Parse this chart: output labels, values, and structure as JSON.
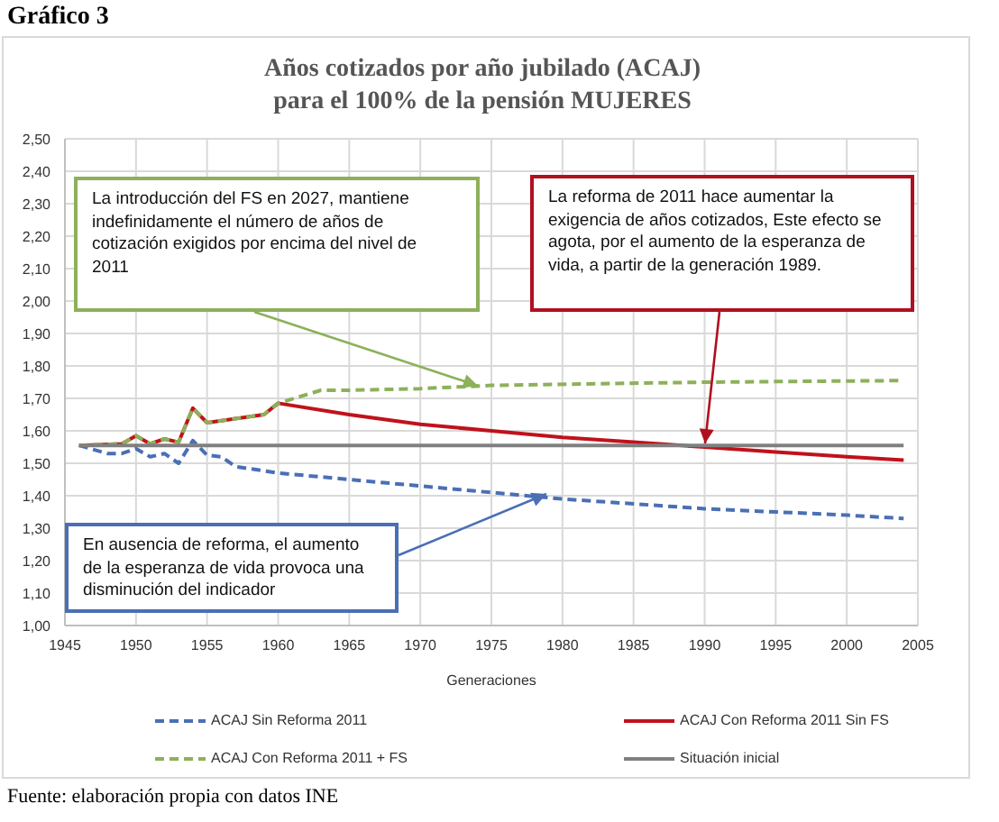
{
  "chart_data": {
    "type": "line",
    "title": "Años cotizados por año jubilado (ACAJ)",
    "subtitle": "para el 100% de la pensión MUJERES",
    "xlabel": "Generaciones",
    "xlim": [
      1945,
      2005
    ],
    "xticks": [
      1945,
      1950,
      1955,
      1960,
      1965,
      1970,
      1975,
      1980,
      1985,
      1990,
      1995,
      2000,
      2005
    ],
    "ylim": [
      1,
      2.5
    ],
    "yticks": [
      {
        "value": 1,
        "label": "1,00"
      },
      {
        "value": 1.1,
        "label": "1,10"
      },
      {
        "value": 1.2,
        "label": "1,20"
      },
      {
        "value": 1.3,
        "label": "1,30"
      },
      {
        "value": 1.4,
        "label": "1,40"
      },
      {
        "value": 1.5,
        "label": "1,50"
      },
      {
        "value": 1.6,
        "label": "1,60"
      },
      {
        "value": 1.7,
        "label": "1,70"
      },
      {
        "value": 1.8,
        "label": "1,80"
      },
      {
        "value": 1.9,
        "label": "1,90"
      },
      {
        "value": 2,
        "label": "2,00"
      },
      {
        "value": 2.1,
        "label": "2,10"
      },
      {
        "value": 2.2,
        "label": "2,20"
      },
      {
        "value": 2.3,
        "label": "2,30"
      },
      {
        "value": 2.4,
        "label": "2,40"
      },
      {
        "value": 2.5,
        "label": "2,50"
      }
    ],
    "grid": true,
    "legend": "bottom",
    "marker": "none",
    "series": [
      {
        "name": "ACAJ Sin Reforma 2011",
        "color": "#4a6fb5",
        "line_style": "dashed",
        "x": [
          1946,
          1948,
          1949,
          1950,
          1951,
          1952,
          1953,
          1954,
          1955,
          1956,
          1957,
          1960,
          1965,
          1970,
          1975,
          1980,
          1990,
          2000,
          2004
        ],
        "values": [
          1.555,
          1.53,
          1.53,
          1.545,
          1.52,
          1.53,
          1.5,
          1.57,
          1.525,
          1.52,
          1.49,
          1.47,
          1.45,
          1.43,
          1.41,
          1.39,
          1.36,
          1.34,
          1.33
        ]
      },
      {
        "name": "ACAJ Con Reforma 2011 Sin FS",
        "color": "#c0121c",
        "line_style": "solid",
        "x": [
          1946,
          1949,
          1950,
          1951,
          1952,
          1953,
          1954,
          1955,
          1959,
          1960,
          1965,
          1970,
          1975,
          1980,
          1985,
          1990,
          1995,
          2000,
          2004
        ],
        "values": [
          1.555,
          1.56,
          1.585,
          1.56,
          1.575,
          1.565,
          1.67,
          1.625,
          1.65,
          1.685,
          1.65,
          1.62,
          1.6,
          1.58,
          1.565,
          1.55,
          1.535,
          1.52,
          1.51
        ]
      },
      {
        "name": "ACAJ Con Reforma 2011 + FS",
        "color": "#8db05a",
        "line_style": "dashed",
        "x": [
          1946,
          1949,
          1950,
          1951,
          1952,
          1953,
          1954,
          1955,
          1959,
          1960,
          1963,
          1965,
          1970,
          1975,
          1990,
          2004
        ],
        "values": [
          1.555,
          1.56,
          1.585,
          1.56,
          1.575,
          1.565,
          1.67,
          1.625,
          1.65,
          1.685,
          1.725,
          1.725,
          1.73,
          1.74,
          1.75,
          1.755
        ]
      },
      {
        "name": "Situación inicial",
        "color": "#808080",
        "line_style": "solid",
        "x": [
          1946,
          2004
        ],
        "values": [
          1.555,
          1.555
        ]
      }
    ],
    "annotations": [
      "Gráfico 3",
      "La introducción del FS en 2027, mantiene indefinidamente el número de años de cotización exigidos por encima del nivel de 2011",
      "La reforma de 2011 hace aumentar la exigencia de años cotizados, Este efecto se agota, por el aumento de la esperanza de vida, a partir de la generación 1989.",
      "En ausencia de reforma, el aumento de la esperanza de vida provoca una disminución del indicador",
      "Fuente: elaboración propia con datos INE"
    ]
  }
}
